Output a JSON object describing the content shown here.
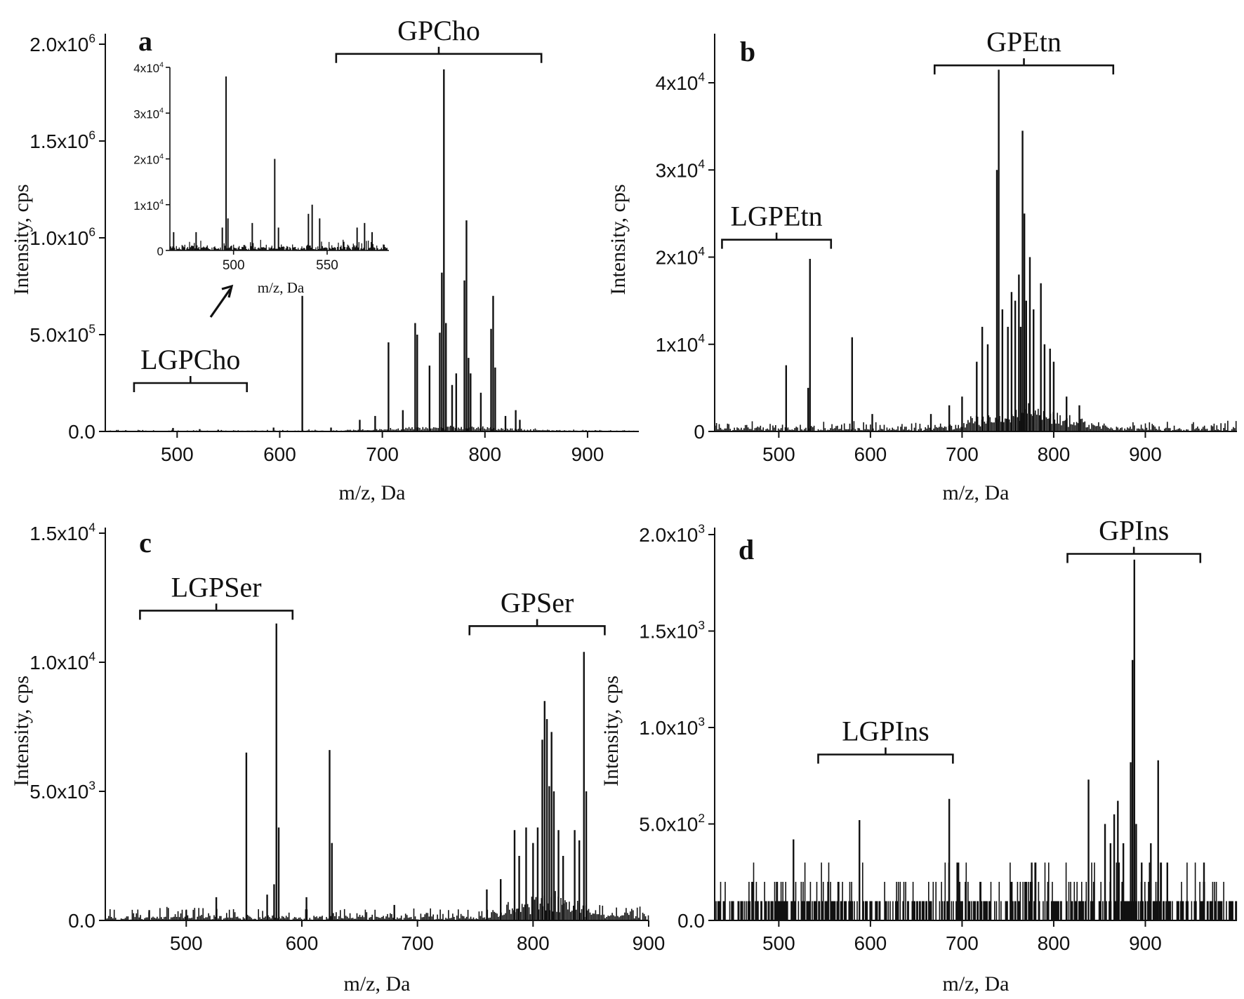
{
  "chart_data": [
    {
      "panel": "a",
      "type": "line",
      "xlabel": "m/z, Da",
      "ylabel": "Intensity, cps",
      "xlim": [
        430,
        950
      ],
      "ylim": [
        0,
        2000000
      ],
      "xticks": [
        {
          "value": 500,
          "label": "500"
        },
        {
          "value": 600,
          "label": "600"
        },
        {
          "value": 700,
          "label": "700"
        },
        {
          "value": 800,
          "label": "800"
        },
        {
          "value": 900,
          "label": "900"
        }
      ],
      "yticks": [
        {
          "value": 0,
          "label": "0.0"
        },
        {
          "value": 500000,
          "label": "5.0x10",
          "sup": "5"
        },
        {
          "value": 1000000,
          "label": "1.0x10",
          "sup": "6"
        },
        {
          "value": 1500000,
          "label": "1.5x10",
          "sup": "6"
        },
        {
          "value": 2000000,
          "label": "2.0x10",
          "sup": "6"
        }
      ],
      "annotations": [
        {
          "text": "GPCho",
          "from": 655,
          "to": 855,
          "y": 1950000
        },
        {
          "text": "LGPCho",
          "from": 458,
          "to": 568,
          "y": 250000
        }
      ],
      "noise": {
        "base": 4000,
        "amp": 6000,
        "step": 1.5,
        "hump_center": 770,
        "hump_width": 75,
        "hump_height": 25000
      },
      "peaks": [
        {
          "x": 496,
          "y": 18000
        },
        {
          "x": 522,
          "y": 12000
        },
        {
          "x": 540,
          "y": 9000
        },
        {
          "x": 594,
          "y": 20000
        },
        {
          "x": 622,
          "y": 700000
        },
        {
          "x": 650,
          "y": 20000
        },
        {
          "x": 678,
          "y": 60000
        },
        {
          "x": 693,
          "y": 80000
        },
        {
          "x": 706,
          "y": 460000
        },
        {
          "x": 720,
          "y": 110000
        },
        {
          "x": 732,
          "y": 560000
        },
        {
          "x": 734,
          "y": 500000
        },
        {
          "x": 746,
          "y": 340000
        },
        {
          "x": 756,
          "y": 510000
        },
        {
          "x": 758,
          "y": 820000
        },
        {
          "x": 760,
          "y": 1870000
        },
        {
          "x": 762,
          "y": 560000
        },
        {
          "x": 768,
          "y": 240000
        },
        {
          "x": 772,
          "y": 300000
        },
        {
          "x": 780,
          "y": 780000
        },
        {
          "x": 782,
          "y": 1090000
        },
        {
          "x": 784,
          "y": 380000
        },
        {
          "x": 786,
          "y": 300000
        },
        {
          "x": 796,
          "y": 200000
        },
        {
          "x": 806,
          "y": 530000
        },
        {
          "x": 808,
          "y": 700000
        },
        {
          "x": 810,
          "y": 330000
        },
        {
          "x": 820,
          "y": 80000
        },
        {
          "x": 830,
          "y": 110000
        },
        {
          "x": 834,
          "y": 60000
        }
      ],
      "inset": {
        "xlabel": "m/z, Da",
        "xlim": [
          466,
          583
        ],
        "ylim": [
          0,
          40000
        ],
        "xticks": [
          {
            "value": 500,
            "label": "500"
          },
          {
            "value": 550,
            "label": "550"
          }
        ],
        "yticks": [
          {
            "value": 0,
            "label": "0"
          },
          {
            "value": 10000,
            "label": "1x10",
            "sup": "4"
          },
          {
            "value": 20000,
            "label": "2x10",
            "sup": "4"
          },
          {
            "value": 30000,
            "label": "3x10",
            "sup": "4"
          },
          {
            "value": 40000,
            "label": "4x10",
            "sup": "4"
          }
        ],
        "noise": {
          "base": 800,
          "amp": 1800,
          "step": 0.5
        },
        "peaks": [
          {
            "x": 468,
            "y": 4000
          },
          {
            "x": 480,
            "y": 4000
          },
          {
            "x": 494,
            "y": 5000
          },
          {
            "x": 496,
            "y": 38000
          },
          {
            "x": 497,
            "y": 7000
          },
          {
            "x": 510,
            "y": 6000
          },
          {
            "x": 522,
            "y": 20000
          },
          {
            "x": 524,
            "y": 5000
          },
          {
            "x": 540,
            "y": 8000
          },
          {
            "x": 542,
            "y": 10000
          },
          {
            "x": 546,
            "y": 7000
          },
          {
            "x": 566,
            "y": 5000
          },
          {
            "x": 570,
            "y": 6000
          },
          {
            "x": 574,
            "y": 4000
          }
        ]
      }
    },
    {
      "panel": "b",
      "type": "line",
      "xlabel": "m/z, Da",
      "ylabel": "Intensity, cps",
      "xlim": [
        430,
        1000
      ],
      "ylim": [
        0,
        45000
      ],
      "xticks": [
        {
          "value": 500,
          "label": "500"
        },
        {
          "value": 600,
          "label": "600"
        },
        {
          "value": 700,
          "label": "700"
        },
        {
          "value": 800,
          "label": "800"
        },
        {
          "value": 900,
          "label": "900"
        }
      ],
      "yticks": [
        {
          "value": 0,
          "label": "0"
        },
        {
          "value": 10000,
          "label": "1x10",
          "sup": "4"
        },
        {
          "value": 20000,
          "label": "2x10",
          "sup": "4"
        },
        {
          "value": 30000,
          "label": "3x10",
          "sup": "4"
        },
        {
          "value": 40000,
          "label": "4x10",
          "sup": "4"
        }
      ],
      "annotations": [
        {
          "text": "GPEtn",
          "from": 670,
          "to": 865,
          "y": 42000
        },
        {
          "text": "LGPEtn",
          "from": 438,
          "to": 557,
          "y": 22000
        }
      ],
      "noise": {
        "base": 400,
        "amp": 1000,
        "step": 1.5,
        "hump_center": 770,
        "hump_width": 60,
        "hump_height": 2500
      },
      "peaks": [
        {
          "x": 508,
          "y": 7600
        },
        {
          "x": 532,
          "y": 5000
        },
        {
          "x": 534,
          "y": 19800
        },
        {
          "x": 580,
          "y": 10800
        },
        {
          "x": 602,
          "y": 2000
        },
        {
          "x": 666,
          "y": 2000
        },
        {
          "x": 686,
          "y": 3000
        },
        {
          "x": 700,
          "y": 4000
        },
        {
          "x": 716,
          "y": 8000
        },
        {
          "x": 722,
          "y": 12000
        },
        {
          "x": 728,
          "y": 10000
        },
        {
          "x": 738,
          "y": 30000
        },
        {
          "x": 740,
          "y": 41500
        },
        {
          "x": 744,
          "y": 14000
        },
        {
          "x": 750,
          "y": 12000
        },
        {
          "x": 754,
          "y": 16000
        },
        {
          "x": 758,
          "y": 15000
        },
        {
          "x": 762,
          "y": 18000
        },
        {
          "x": 764,
          "y": 12000
        },
        {
          "x": 766,
          "y": 34500
        },
        {
          "x": 768,
          "y": 25000
        },
        {
          "x": 770,
          "y": 15000
        },
        {
          "x": 774,
          "y": 20000
        },
        {
          "x": 778,
          "y": 14000
        },
        {
          "x": 786,
          "y": 17000
        },
        {
          "x": 790,
          "y": 10000
        },
        {
          "x": 796,
          "y": 9500
        },
        {
          "x": 800,
          "y": 8000
        },
        {
          "x": 814,
          "y": 4000
        },
        {
          "x": 828,
          "y": 3000
        }
      ]
    },
    {
      "panel": "c",
      "type": "line",
      "xlabel": "m/z, Da",
      "ylabel": "Intensity, cps",
      "xlim": [
        430,
        900
      ],
      "ylim": [
        0,
        15000
      ],
      "xticks": [
        {
          "value": 500,
          "label": "500"
        },
        {
          "value": 600,
          "label": "600"
        },
        {
          "value": 700,
          "label": "700"
        },
        {
          "value": 800,
          "label": "800"
        },
        {
          "value": 900,
          "label": "900"
        }
      ],
      "yticks": [
        {
          "value": 0,
          "label": "0.0"
        },
        {
          "value": 5000,
          "label": "5.0x10",
          "sup": "3"
        },
        {
          "value": 10000,
          "label": "1.0x10",
          "sup": "4"
        },
        {
          "value": 15000,
          "label": "1.5x10",
          "sup": "4"
        }
      ],
      "annotations": [
        {
          "text": "LGPSer",
          "from": 460,
          "to": 592,
          "y": 12000
        },
        {
          "text": "GPSer",
          "from": 745,
          "to": 862,
          "y": 11400
        }
      ],
      "noise": {
        "base": 150,
        "amp": 450,
        "step": 1.2,
        "hump_center": 815,
        "hump_width": 35,
        "hump_height": 900
      },
      "peaks": [
        {
          "x": 468,
          "y": 400
        },
        {
          "x": 500,
          "y": 400
        },
        {
          "x": 526,
          "y": 900
        },
        {
          "x": 552,
          "y": 6500
        },
        {
          "x": 570,
          "y": 1000
        },
        {
          "x": 576,
          "y": 1400
        },
        {
          "x": 578,
          "y": 11500
        },
        {
          "x": 580,
          "y": 3600
        },
        {
          "x": 604,
          "y": 900
        },
        {
          "x": 624,
          "y": 6600
        },
        {
          "x": 626,
          "y": 3000
        },
        {
          "x": 680,
          "y": 600
        },
        {
          "x": 760,
          "y": 1200
        },
        {
          "x": 772,
          "y": 1600
        },
        {
          "x": 784,
          "y": 3500
        },
        {
          "x": 788,
          "y": 2500
        },
        {
          "x": 794,
          "y": 3600
        },
        {
          "x": 800,
          "y": 3000
        },
        {
          "x": 804,
          "y": 3600
        },
        {
          "x": 808,
          "y": 7000
        },
        {
          "x": 810,
          "y": 8500
        },
        {
          "x": 812,
          "y": 7800
        },
        {
          "x": 814,
          "y": 5200
        },
        {
          "x": 816,
          "y": 7300
        },
        {
          "x": 818,
          "y": 5000
        },
        {
          "x": 822,
          "y": 3500
        },
        {
          "x": 826,
          "y": 2500
        },
        {
          "x": 836,
          "y": 3500
        },
        {
          "x": 840,
          "y": 3100
        },
        {
          "x": 844,
          "y": 10400
        },
        {
          "x": 846,
          "y": 5000
        }
      ]
    },
    {
      "panel": "d",
      "type": "line",
      "xlabel": "m/z, Da",
      "ylabel": "Intensity, cps",
      "xlim": [
        430,
        1000
      ],
      "ylim": [
        0,
        2000
      ],
      "xticks": [
        {
          "value": 500,
          "label": "500"
        },
        {
          "value": 600,
          "label": "600"
        },
        {
          "value": 700,
          "label": "700"
        },
        {
          "value": 800,
          "label": "800"
        },
        {
          "value": 900,
          "label": "900"
        }
      ],
      "yticks": [
        {
          "value": 0,
          "label": "0.0"
        },
        {
          "value": 500,
          "label": "5.0x10",
          "sup": "2"
        },
        {
          "value": 1000,
          "label": "1.0x10",
          "sup": "3"
        },
        {
          "value": 1500,
          "label": "1.5x10",
          "sup": "3"
        },
        {
          "value": 2000,
          "label": "2.0x10",
          "sup": "3"
        }
      ],
      "annotations": [
        {
          "text": "GPIns",
          "from": 815,
          "to": 960,
          "y": 1900
        },
        {
          "text": "LGPIns",
          "from": 543,
          "to": 690,
          "y": 860
        }
      ],
      "noise": {
        "levels": [
          0,
          100,
          200,
          300
        ],
        "step": 1.0
      },
      "peaks": [
        {
          "x": 516,
          "y": 420
        },
        {
          "x": 588,
          "y": 520
        },
        {
          "x": 686,
          "y": 630
        },
        {
          "x": 696,
          "y": 300
        },
        {
          "x": 776,
          "y": 300
        },
        {
          "x": 838,
          "y": 730
        },
        {
          "x": 856,
          "y": 500
        },
        {
          "x": 862,
          "y": 400
        },
        {
          "x": 866,
          "y": 550
        },
        {
          "x": 870,
          "y": 620
        },
        {
          "x": 876,
          "y": 400
        },
        {
          "x": 884,
          "y": 820
        },
        {
          "x": 886,
          "y": 1350
        },
        {
          "x": 888,
          "y": 1870
        },
        {
          "x": 890,
          "y": 500
        },
        {
          "x": 896,
          "y": 300
        },
        {
          "x": 906,
          "y": 400
        },
        {
          "x": 914,
          "y": 830
        },
        {
          "x": 924,
          "y": 300
        },
        {
          "x": 964,
          "y": 300
        }
      ]
    }
  ]
}
